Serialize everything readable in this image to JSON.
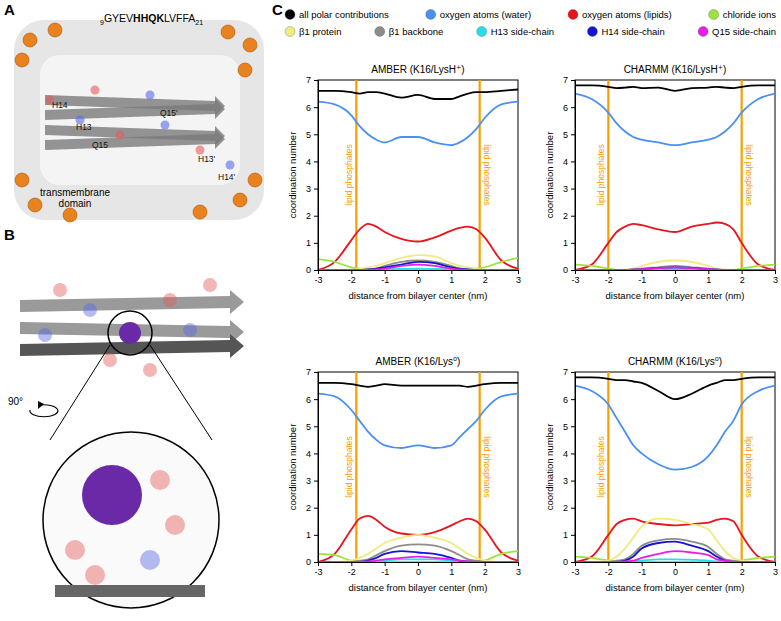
{
  "panels": {
    "A": {
      "label": "A",
      "sequence": {
        "start": "9",
        "plain": "GYEV",
        "bold": "HHQK",
        "rest": "LVFFA",
        "end": "21"
      },
      "residue_labels": [
        "H14",
        "H13",
        "Q15",
        "Q15'",
        "H13'",
        "H14'"
      ],
      "annotation_lines": [
        "transmembrane",
        "domain"
      ]
    },
    "B": {
      "label": "B",
      "rotation_label": "90°"
    },
    "C": {
      "label": "C"
    }
  },
  "chart_data": [
    {
      "type": "line",
      "title": "AMBER (K16/LysH⁺)",
      "xlabel": "distance from bilayer center (nm)",
      "ylabel": "coordination number",
      "legend": "top",
      "x": [
        -3,
        -2.5,
        -2,
        -1.75,
        -1.5,
        -1.25,
        -1,
        -0.5,
        0,
        0.5,
        1,
        1.25,
        1.5,
        1.75,
        2,
        2.5,
        3
      ],
      "xlim": [
        -3,
        3
      ],
      "ylim": [
        0,
        7
      ],
      "xticks": [
        -3,
        -2,
        -1,
        0,
        1,
        2,
        3
      ],
      "yticks": [
        0,
        1,
        2,
        3,
        4,
        5,
        6,
        7
      ],
      "vlines": {
        "label": "lipid phosphates",
        "color": "#f5a000",
        "values": [
          -1.85,
          1.85
        ]
      },
      "series": [
        {
          "name": "all polar contributions",
          "color": "#000000",
          "values": [
            6.6,
            6.6,
            6.55,
            6.5,
            6.55,
            6.55,
            6.5,
            6.35,
            6.45,
            6.3,
            6.3,
            6.4,
            6.5,
            6.55,
            6.55,
            6.6,
            6.65
          ]
        },
        {
          "name": "oxygen atoms (water)",
          "color": "#4a90f0",
          "values": [
            6.2,
            6.1,
            5.7,
            5.3,
            5.0,
            4.8,
            4.7,
            4.9,
            4.9,
            4.7,
            4.6,
            4.7,
            4.9,
            5.2,
            5.6,
            6.1,
            6.2
          ]
        },
        {
          "name": "oxygen atoms (lipids)",
          "color": "#e8141e",
          "values": [
            0,
            0.3,
            1.1,
            1.5,
            1.7,
            1.6,
            1.4,
            1.15,
            1.05,
            1.2,
            1.45,
            1.55,
            1.6,
            1.5,
            1.2,
            0.35,
            0.05
          ]
        },
        {
          "name": "chloride ions",
          "color": "#9be43c",
          "values": [
            0.4,
            0.3,
            0.1,
            0.05,
            0,
            0,
            0,
            0,
            0,
            0,
            0,
            0,
            0,
            0.05,
            0.1,
            0.3,
            0.45
          ]
        },
        {
          "name": "β1 protein",
          "color": "#f0ea80",
          "values": [
            0,
            0,
            0,
            0.05,
            0.1,
            0.15,
            0.25,
            0.45,
            0.55,
            0.5,
            0.25,
            0.15,
            0.1,
            0.05,
            0,
            0,
            0
          ]
        },
        {
          "name": "β1 backbone",
          "color": "#8c8c8c",
          "values": [
            0,
            0,
            0,
            0,
            0.02,
            0.05,
            0.15,
            0.3,
            0.35,
            0.3,
            0.15,
            0.05,
            0.02,
            0,
            0,
            0,
            0
          ]
        },
        {
          "name": "H13 side-chain",
          "color": "#22e0e8",
          "values": [
            0,
            0,
            0,
            0,
            0,
            0.01,
            0.02,
            0.04,
            0.05,
            0.04,
            0.02,
            0.01,
            0,
            0,
            0,
            0,
            0
          ]
        },
        {
          "name": "H14 side-chain",
          "color": "#1414d2",
          "values": [
            0,
            0,
            0,
            0,
            0.02,
            0.05,
            0.1,
            0.2,
            0.3,
            0.25,
            0.1,
            0.05,
            0.02,
            0,
            0,
            0,
            0
          ]
        },
        {
          "name": "Q15 side-chain",
          "color": "#e81ee8",
          "values": [
            0,
            0,
            0,
            0,
            0,
            0.02,
            0.05,
            0.15,
            0.2,
            0.15,
            0.05,
            0.02,
            0,
            0,
            0,
            0,
            0
          ]
        }
      ]
    },
    {
      "type": "line",
      "title": "CHARMM (K16/LysH⁺)",
      "xlabel": "distance from bilayer center (nm)",
      "ylabel": "coordination number",
      "x": [
        -3,
        -2.5,
        -2,
        -1.75,
        -1.5,
        -1.25,
        -1,
        -0.5,
        0,
        0.5,
        1,
        1.25,
        1.5,
        1.75,
        2,
        2.5,
        3
      ],
      "xlim": [
        -3,
        3
      ],
      "ylim": [
        0,
        7
      ],
      "xticks": [
        -3,
        -2,
        -1,
        0,
        1,
        2,
        3
      ],
      "yticks": [
        0,
        1,
        2,
        3,
        4,
        5,
        6,
        7
      ],
      "vlines": {
        "label": "lipid phosphates",
        "color": "#f5a000",
        "values": [
          -2,
          2
        ]
      },
      "series": [
        {
          "name": "all polar contributions",
          "color": "#000000",
          "values": [
            6.8,
            6.8,
            6.75,
            6.7,
            6.72,
            6.75,
            6.7,
            6.72,
            6.6,
            6.7,
            6.72,
            6.75,
            6.72,
            6.7,
            6.75,
            6.8,
            6.8
          ]
        },
        {
          "name": "oxygen atoms (water)",
          "color": "#4a90f0",
          "values": [
            6.5,
            6.3,
            5.8,
            5.4,
            5.1,
            4.9,
            4.8,
            4.7,
            4.6,
            4.7,
            4.8,
            4.9,
            5.1,
            5.4,
            5.8,
            6.3,
            6.5
          ]
        },
        {
          "name": "oxygen atoms (lipids)",
          "color": "#e8141e",
          "values": [
            0,
            0.2,
            1.0,
            1.4,
            1.6,
            1.7,
            1.65,
            1.5,
            1.4,
            1.6,
            1.7,
            1.75,
            1.7,
            1.5,
            1.0,
            0.2,
            0
          ]
        },
        {
          "name": "chloride ions",
          "color": "#9be43c",
          "values": [
            0.2,
            0.15,
            0.05,
            0,
            0,
            0,
            0,
            0,
            0,
            0,
            0,
            0,
            0,
            0,
            0.05,
            0.15,
            0.2
          ]
        },
        {
          "name": "β1 protein",
          "color": "#f0ea80",
          "values": [
            0,
            0,
            0,
            0,
            0.02,
            0.05,
            0.15,
            0.3,
            0.35,
            0.3,
            0.15,
            0.05,
            0.02,
            0,
            0,
            0,
            0
          ]
        },
        {
          "name": "β1 backbone",
          "color": "#8c8c8c",
          "values": [
            0,
            0,
            0,
            0,
            0,
            0.02,
            0.05,
            0.1,
            0.15,
            0.1,
            0.05,
            0.02,
            0,
            0,
            0,
            0,
            0
          ]
        },
        {
          "name": "H13 side-chain",
          "color": "#22e0e8",
          "values": [
            0,
            0,
            0,
            0,
            0,
            0,
            0.01,
            0.02,
            0.03,
            0.02,
            0.01,
            0,
            0,
            0,
            0,
            0,
            0
          ]
        },
        {
          "name": "H14 side-chain",
          "color": "#1414d2",
          "values": [
            0,
            0,
            0,
            0,
            0,
            0.01,
            0.03,
            0.08,
            0.1,
            0.08,
            0.03,
            0.01,
            0,
            0,
            0,
            0,
            0
          ]
        },
        {
          "name": "Q15 side-chain",
          "color": "#e81ee8",
          "values": [
            0,
            0,
            0,
            0,
            0,
            0.01,
            0.03,
            0.07,
            0.1,
            0.07,
            0.03,
            0.01,
            0,
            0,
            0,
            0,
            0
          ]
        }
      ]
    },
    {
      "type": "line",
      "title": "AMBER (K16/Lys⁰)",
      "xlabel": "distance from bilayer center (nm)",
      "ylabel": "coordination number",
      "x": [
        -3,
        -2.5,
        -2,
        -1.75,
        -1.5,
        -1.25,
        -1,
        -0.5,
        0,
        0.5,
        1,
        1.25,
        1.5,
        1.75,
        2,
        2.5,
        3
      ],
      "xlim": [
        -3,
        3
      ],
      "ylim": [
        0,
        7
      ],
      "xticks": [
        -3,
        -2,
        -1,
        0,
        1,
        2,
        3
      ],
      "yticks": [
        0,
        1,
        2,
        3,
        4,
        5,
        6,
        7
      ],
      "vlines": {
        "label": "lipid phosphates",
        "color": "#f5a000",
        "values": [
          -1.85,
          1.85
        ]
      },
      "series": [
        {
          "name": "all polar contributions",
          "color": "#000000",
          "values": [
            6.6,
            6.6,
            6.55,
            6.5,
            6.45,
            6.5,
            6.55,
            6.5,
            6.5,
            6.5,
            6.5,
            6.5,
            6.45,
            6.5,
            6.55,
            6.6,
            6.6
          ]
        },
        {
          "name": "oxygen atoms (water)",
          "color": "#4a90f0",
          "values": [
            6.2,
            6.1,
            5.6,
            5.2,
            4.8,
            4.5,
            4.3,
            4.2,
            4.3,
            4.2,
            4.3,
            4.6,
            4.9,
            5.2,
            5.6,
            6.1,
            6.2
          ]
        },
        {
          "name": "oxygen atoms (lipids)",
          "color": "#e8141e",
          "values": [
            0,
            0.3,
            1.2,
            1.6,
            1.7,
            1.55,
            1.3,
            1.05,
            1.0,
            1.1,
            1.35,
            1.5,
            1.6,
            1.5,
            1.2,
            0.35,
            0.05
          ]
        },
        {
          "name": "chloride ions",
          "color": "#9be43c",
          "values": [
            0.3,
            0.25,
            0.05,
            0,
            0,
            0,
            0,
            0,
            0,
            0,
            0,
            0,
            0,
            0,
            0.05,
            0.3,
            0.4
          ]
        },
        {
          "name": "β1 protein",
          "color": "#f0ea80",
          "values": [
            0,
            0,
            0.05,
            0.15,
            0.3,
            0.5,
            0.7,
            0.9,
            1.0,
            0.9,
            0.7,
            0.5,
            0.3,
            0.15,
            0.05,
            0,
            0
          ]
        },
        {
          "name": "β1 backbone",
          "color": "#8c8c8c",
          "values": [
            0,
            0,
            0,
            0.05,
            0.1,
            0.25,
            0.4,
            0.6,
            0.65,
            0.6,
            0.4,
            0.25,
            0.1,
            0.05,
            0,
            0,
            0
          ]
        },
        {
          "name": "H13 side-chain",
          "color": "#22e0e8",
          "values": [
            0,
            0,
            0,
            0,
            0,
            0.02,
            0.05,
            0.1,
            0.1,
            0.1,
            0.05,
            0.02,
            0,
            0,
            0,
            0,
            0
          ]
        },
        {
          "name": "H14 side-chain",
          "color": "#1414d2",
          "values": [
            0,
            0,
            0,
            0,
            0.05,
            0.15,
            0.3,
            0.4,
            0.35,
            0.3,
            0.15,
            0.05,
            0.02,
            0,
            0,
            0,
            0
          ]
        },
        {
          "name": "Q15 side-chain",
          "color": "#e81ee8",
          "values": [
            0,
            0,
            0,
            0,
            0.02,
            0.05,
            0.1,
            0.15,
            0.2,
            0.15,
            0.1,
            0.05,
            0.02,
            0,
            0,
            0,
            0
          ]
        }
      ]
    },
    {
      "type": "line",
      "title": "CHARMM (K16/Lys⁰)",
      "xlabel": "distance from bilayer center (nm)",
      "ylabel": "coordination number",
      "x": [
        -3,
        -2.5,
        -2,
        -1.75,
        -1.5,
        -1.25,
        -1,
        -0.5,
        0,
        0.5,
        1,
        1.25,
        1.5,
        1.75,
        2,
        2.5,
        3
      ],
      "xlim": [
        -3,
        3
      ],
      "ylim": [
        0,
        7
      ],
      "xticks": [
        -3,
        -2,
        -1,
        0,
        1,
        2,
        3
      ],
      "yticks": [
        0,
        1,
        2,
        3,
        4,
        5,
        6,
        7
      ],
      "vlines": {
        "label": "lipid phosphates",
        "color": "#f5a000",
        "values": [
          -2,
          2
        ]
      },
      "series": [
        {
          "name": "all polar contributions",
          "color": "#000000",
          "values": [
            6.8,
            6.8,
            6.75,
            6.7,
            6.7,
            6.65,
            6.6,
            6.3,
            6.0,
            6.2,
            6.5,
            6.6,
            6.7,
            6.7,
            6.75,
            6.8,
            6.8
          ]
        },
        {
          "name": "oxygen atoms (water)",
          "color": "#4a90f0",
          "values": [
            6.5,
            6.3,
            5.8,
            5.3,
            4.8,
            4.3,
            4.0,
            3.6,
            3.4,
            3.5,
            3.9,
            4.3,
            4.8,
            5.2,
            5.8,
            6.3,
            6.5
          ]
        },
        {
          "name": "oxygen atoms (lipids)",
          "color": "#e8141e",
          "values": [
            0,
            0.2,
            1.0,
            1.4,
            1.55,
            1.6,
            1.5,
            1.4,
            1.35,
            1.4,
            1.45,
            1.55,
            1.6,
            1.5,
            1.0,
            0.2,
            0
          ]
        },
        {
          "name": "chloride ions",
          "color": "#9be43c",
          "values": [
            0.2,
            0.15,
            0.05,
            0,
            0,
            0,
            0,
            0,
            0,
            0,
            0,
            0,
            0,
            0,
            0.05,
            0.15,
            0.2
          ]
        },
        {
          "name": "β1 protein",
          "color": "#f0ea80",
          "values": [
            0,
            0,
            0.05,
            0.2,
            0.5,
            0.9,
            1.3,
            1.6,
            1.55,
            1.4,
            1.2,
            0.8,
            0.4,
            0.15,
            0.05,
            0,
            0
          ]
        },
        {
          "name": "β1 backbone",
          "color": "#8c8c8c",
          "values": [
            0,
            0,
            0,
            0.05,
            0.1,
            0.3,
            0.6,
            0.8,
            0.85,
            0.75,
            0.55,
            0.3,
            0.1,
            0.05,
            0,
            0,
            0
          ]
        },
        {
          "name": "H13 side-chain",
          "color": "#22e0e8",
          "values": [
            0,
            0,
            0,
            0,
            0,
            0.02,
            0.05,
            0.1,
            0.1,
            0.08,
            0.05,
            0.02,
            0,
            0,
            0,
            0,
            0
          ]
        },
        {
          "name": "H14 side-chain",
          "color": "#1414d2",
          "values": [
            0,
            0,
            0,
            0,
            0.05,
            0.2,
            0.5,
            0.7,
            0.75,
            0.6,
            0.4,
            0.2,
            0.05,
            0,
            0,
            0,
            0
          ]
        },
        {
          "name": "Q15 side-chain",
          "color": "#e81ee8",
          "values": [
            0,
            0,
            0,
            0,
            0.02,
            0.05,
            0.15,
            0.3,
            0.4,
            0.35,
            0.25,
            0.1,
            0.05,
            0,
            0,
            0,
            0
          ]
        }
      ]
    }
  ]
}
